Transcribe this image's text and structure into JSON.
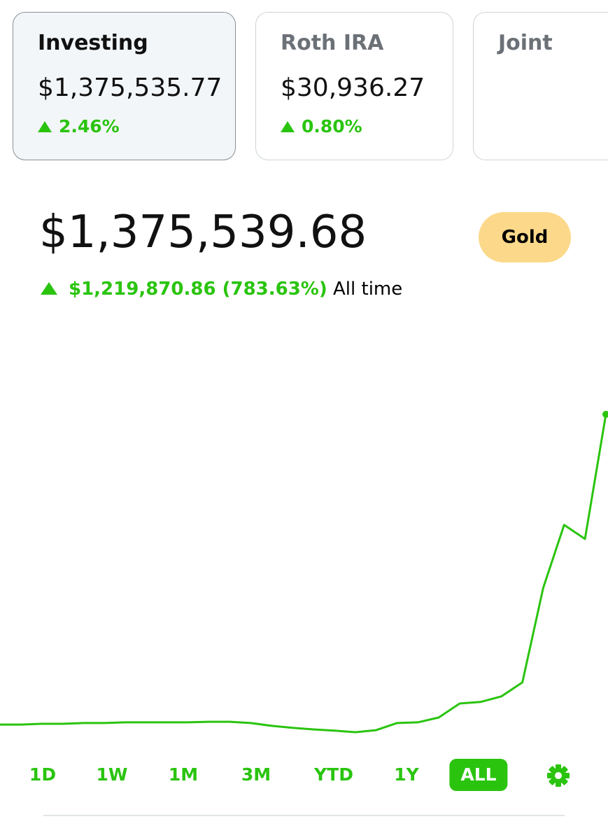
{
  "accounts": [
    {
      "name": "Investing",
      "value": "$1,375,535.77",
      "change": "2.46%"
    },
    {
      "name": "Roth IRA",
      "value": "$30,936.27",
      "change": "0.80%"
    },
    {
      "name": "Joint"
    }
  ],
  "portfolio": {
    "value": "$1,375,539.68",
    "change": "$1,219,870.86 (783.63%)",
    "period": "All time",
    "badge": "Gold"
  },
  "chart_data": {
    "type": "line",
    "color": "#2ac40f",
    "values": [
      154000,
      154000,
      157000,
      157000,
      160000,
      160000,
      163000,
      163000,
      163000,
      163000,
      165000,
      165000,
      160000,
      149000,
      141000,
      135000,
      130000,
      124000,
      132000,
      160000,
      163000,
      182000,
      237000,
      243000,
      265000,
      320000,
      692000,
      940000,
      885000,
      1375540
    ],
    "ylim": [
      0,
      1400000
    ]
  },
  "ranges": [
    "1D",
    "1W",
    "1M",
    "3M",
    "YTD",
    "1Y",
    "ALL"
  ],
  "selected_range": "ALL"
}
